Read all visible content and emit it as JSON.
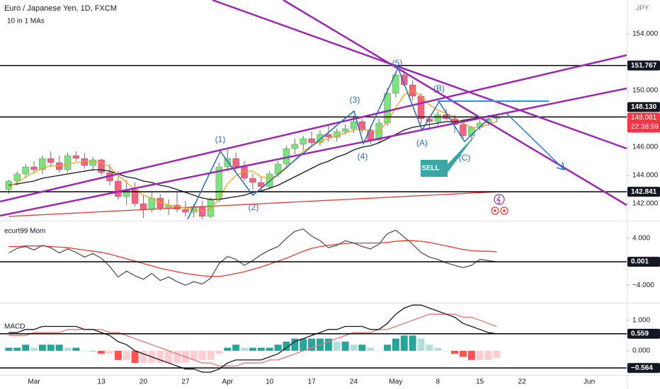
{
  "chart_data": [
    {
      "type": "candlestick",
      "title": "Euro / Japanese Yen, 1D, FXCM",
      "subtitle": "10 in 1 MAs",
      "currency": "JPY",
      "categories": [
        null,
        null,
        null,
        "Mar",
        null,
        null,
        null,
        null,
        null,
        null,
        null,
        "13",
        null,
        null,
        null,
        null,
        "20",
        null,
        null,
        null,
        null,
        "27",
        null,
        null,
        null,
        null,
        "Apr",
        null,
        null,
        null,
        null,
        "10",
        null,
        null,
        null,
        null,
        "17",
        null,
        null,
        null,
        null,
        "24",
        null,
        null,
        null,
        null,
        "May",
        null,
        null,
        null,
        null,
        "8",
        null,
        null,
        null,
        null,
        "15",
        null,
        null,
        null,
        null,
        "22",
        null,
        null,
        null,
        null,
        null,
        null,
        null,
        "Jun"
      ],
      "open": [
        143.0,
        143.6,
        144.1,
        144.6,
        144.4,
        145.2,
        144.9,
        144.4,
        145.4,
        145.2,
        144.7,
        145.1,
        144.2,
        143.6,
        142.5,
        143.0,
        142.0,
        141.6,
        142.4,
        141.7,
        141.9,
        141.6,
        141.4,
        141.8,
        141.1,
        142.3,
        144.6,
        145.2,
        144.6,
        143.8,
        143.5,
        143.2,
        144.1,
        144.8,
        145.9,
        146.2,
        146.6,
        146.3,
        146.9,
        146.7,
        147.1,
        147.3,
        147.8,
        147.2,
        146.5,
        147.7,
        149.8,
        151.1,
        150.4,
        149.6,
        148.0,
        147.8,
        148.3,
        148.0,
        147.6,
        146.8,
        147.4,
        147.7,
        148.0,
        null,
        null,
        null,
        null,
        null,
        null,
        null,
        null,
        null,
        null,
        null
      ],
      "high": [
        143.7,
        144.3,
        144.8,
        145.0,
        145.4,
        145.7,
        145.4,
        145.6,
        145.7,
        145.6,
        145.3,
        145.2,
        144.8,
        144.3,
        143.7,
        143.5,
        142.6,
        142.8,
        142.7,
        142.3,
        142.8,
        142.2,
        142.0,
        142.2,
        142.4,
        144.9,
        145.8,
        145.6,
        145.0,
        144.1,
        143.9,
        144.3,
        145.0,
        146.1,
        146.6,
        146.8,
        147.1,
        147.2,
        147.6,
        147.3,
        147.6,
        148.2,
        148.0,
        147.5,
        148.0,
        150.2,
        151.3,
        151.6,
        150.7,
        149.8,
        148.2,
        148.5,
        148.7,
        148.3,
        147.8,
        147.5,
        147.9,
        148.3,
        148.3,
        null,
        null,
        null,
        null,
        null,
        null,
        null,
        null,
        null,
        null,
        null
      ],
      "low": [
        142.7,
        143.3,
        143.8,
        144.2,
        144.1,
        144.6,
        144.2,
        144.2,
        145.0,
        144.5,
        144.3,
        144.0,
        143.3,
        142.3,
        141.9,
        141.8,
        141.0,
        141.4,
        141.5,
        141.2,
        141.4,
        141.1,
        141.0,
        140.9,
        141.0,
        142.1,
        144.3,
        144.3,
        143.6,
        143.0,
        142.9,
        143.0,
        143.9,
        144.6,
        145.5,
        145.8,
        146.0,
        146.1,
        146.4,
        146.4,
        146.9,
        147.0,
        147.0,
        146.2,
        146.3,
        147.5,
        149.5,
        150.3,
        149.3,
        147.6,
        147.2,
        147.5,
        147.9,
        147.0,
        146.5,
        146.4,
        147.2,
        147.5,
        147.8,
        null,
        null,
        null,
        null,
        null,
        null,
        null,
        null,
        null,
        null,
        null
      ],
      "close": [
        143.6,
        144.1,
        144.6,
        144.4,
        145.2,
        144.9,
        144.4,
        145.4,
        145.2,
        144.7,
        145.1,
        144.2,
        143.6,
        142.5,
        143.0,
        142.0,
        141.6,
        142.4,
        141.7,
        141.9,
        141.6,
        141.4,
        141.8,
        141.1,
        142.3,
        144.6,
        145.2,
        144.6,
        143.8,
        143.5,
        143.2,
        144.1,
        144.8,
        145.9,
        146.2,
        146.6,
        146.3,
        146.9,
        146.7,
        147.1,
        147.3,
        147.8,
        147.2,
        146.5,
        147.7,
        149.8,
        151.1,
        150.4,
        149.6,
        148.0,
        147.8,
        148.3,
        148.0,
        147.6,
        146.8,
        147.4,
        147.7,
        148.0,
        148.081,
        null,
        null,
        null,
        null,
        null,
        null,
        null,
        null,
        null,
        null,
        null
      ],
      "up_color": "#7ee07e",
      "down_color": "#f0627f",
      "series": [
        {
          "color": "#e53935",
          "values": [
            141.1,
            141.13,
            141.16,
            141.19,
            141.22,
            141.25,
            141.28,
            141.31,
            141.34,
            141.37,
            141.4,
            141.43,
            141.46,
            141.49,
            141.52,
            141.55,
            141.58,
            141.61,
            141.64,
            141.67,
            141.7,
            141.73,
            141.76,
            141.79,
            141.82,
            141.85,
            141.88,
            141.91,
            141.94,
            141.97,
            142.0,
            142.03,
            142.06,
            142.09,
            142.12,
            142.15,
            142.18,
            142.21,
            142.24,
            142.27,
            142.3,
            142.33,
            142.36,
            142.39,
            142.42,
            142.45,
            142.48,
            142.51,
            142.54,
            142.57,
            142.6,
            142.63,
            142.66,
            142.69,
            142.72,
            142.75,
            142.78,
            142.81,
            142.84,
            null,
            null,
            null,
            null,
            null,
            null,
            null,
            null,
            null,
            null,
            null
          ]
        },
        {
          "color": "#131722",
          "values": [
            143.3,
            143.4,
            143.5,
            143.6,
            143.8,
            143.9,
            144.0,
            144.1,
            144.2,
            144.3,
            144.4,
            144.4,
            144.3,
            144.1,
            143.9,
            143.8,
            143.6,
            143.5,
            143.3,
            143.2,
            143.0,
            142.8,
            142.6,
            142.4,
            142.3,
            142.3,
            142.4,
            142.5,
            142.6,
            142.8,
            142.9,
            143.1,
            143.3,
            143.6,
            143.9,
            144.2,
            144.5,
            144.8,
            145.0,
            145.3,
            145.5,
            145.8,
            146.0,
            146.1,
            146.3,
            146.6,
            146.9,
            147.2,
            147.4,
            147.5,
            147.6,
            147.7,
            147.8,
            147.8,
            147.9,
            148.0,
            148.1,
            148.2,
            148.3,
            null,
            null,
            null,
            null,
            null,
            null,
            null,
            null,
            null,
            null,
            null
          ]
        },
        {
          "color": "#f7a21b",
          "values": [
            143.2,
            143.5,
            143.9,
            144.2,
            144.5,
            144.7,
            144.7,
            144.8,
            144.9,
            145.0,
            145.0,
            144.9,
            144.6,
            144.0,
            143.5,
            143.0,
            142.6,
            142.4,
            142.1,
            141.9,
            141.8,
            141.7,
            141.6,
            141.5,
            141.6,
            142.4,
            143.4,
            144.0,
            144.3,
            144.3,
            143.9,
            143.8,
            144.0,
            144.5,
            145.1,
            145.7,
            146.1,
            146.4,
            146.6,
            146.8,
            147.0,
            147.2,
            147.3,
            147.1,
            147.1,
            147.8,
            148.8,
            149.7,
            150.0,
            149.6,
            149.0,
            148.6,
            148.4,
            148.1,
            147.7,
            147.4,
            147.4,
            147.6,
            147.8,
            null,
            null,
            null,
            null,
            null,
            null,
            null,
            null,
            null,
            null,
            null
          ]
        }
      ],
      "ylim": [
        140.8,
        156.4
      ],
      "yticks": [
        {
          "value": 142,
          "label": "142.000"
        },
        {
          "value": 144,
          "label": "144.000"
        },
        {
          "value": 146,
          "label": "146.000"
        },
        {
          "value": 150,
          "label": "150.000"
        },
        {
          "value": 154,
          "label": "154.000"
        }
      ],
      "levels": [
        151.767,
        {
          "value": 148.13,
          "label": "148.130"
        },
        142.841
      ],
      "last_price": 148.081,
      "countdown": "22:38:59",
      "annotations": [
        "(1)",
        "(2)",
        "(3)",
        "(4)",
        "(5)",
        "(A)",
        "(B)",
        "(C)",
        "SELL"
      ]
    },
    {
      "type": "line",
      "title": "ecurt99 Mom",
      "series": [
        {
          "color": "#e53935",
          "values": [
            2.6,
            2.6,
            2.7,
            2.7,
            2.7,
            2.6,
            2.5,
            2.4,
            2.2,
            2.0,
            1.8,
            1.6,
            1.3,
            0.9,
            0.5,
            0.1,
            -0.3,
            -0.7,
            -1.1,
            -1.4,
            -1.7,
            -2.0,
            -2.2,
            -2.4,
            -2.5,
            -2.5,
            -2.3,
            -2.0,
            -1.7,
            -1.3,
            -0.9,
            -0.4,
            0.1,
            0.6,
            1.2,
            1.8,
            2.3,
            2.6,
            2.8,
            3.0,
            3.1,
            3.2,
            3.2,
            3.2,
            3.2,
            3.3,
            3.5,
            3.6,
            3.6,
            3.5,
            3.3,
            3.0,
            2.7,
            2.4,
            2.1,
            1.9,
            1.8,
            1.8,
            1.7,
            null,
            null,
            null,
            null,
            null,
            null,
            null,
            null,
            null,
            null,
            null
          ]
        },
        {
          "color": "#555555",
          "values": [
            1.5,
            2.3,
            2.6,
            2.0,
            2.8,
            2.4,
            1.5,
            2.2,
            1.6,
            0.8,
            1.4,
            0.6,
            -0.8,
            -2.6,
            -1.6,
            -2.4,
            -3.0,
            -2.0,
            -3.2,
            -2.6,
            -3.4,
            -4.0,
            -3.4,
            -3.8,
            -2.8,
            -0.3,
            0.9,
            0.4,
            -0.6,
            0.2,
            1.2,
            2.0,
            2.6,
            4.0,
            5.2,
            5.6,
            4.4,
            3.6,
            2.4,
            2.8,
            3.6,
            3.2,
            2.6,
            2.2,
            3.0,
            4.8,
            5.4,
            4.2,
            3.0,
            1.6,
            0.8,
            0.4,
            -0.2,
            -0.6,
            -1.0,
            -0.6,
            0.4,
            0.2,
            0.001,
            null,
            null,
            null,
            null,
            null,
            null,
            null,
            null,
            null,
            null,
            null
          ]
        }
      ],
      "ylim": [
        -7.0,
        6.9
      ],
      "yticks": [
        {
          "value": 4,
          "label": "4.000"
        },
        {
          "value": -4,
          "label": "−4.000"
        }
      ],
      "levels": [
        0.001
      ]
    },
    {
      "type": "line",
      "title": "MACD",
      "series": [
        {
          "color": "#e57373",
          "values": [
            0.5,
            0.5,
            0.5,
            0.6,
            0.6,
            0.6,
            0.6,
            0.7,
            0.7,
            0.7,
            0.7,
            0.7,
            0.6,
            0.6,
            0.5,
            0.4,
            0.3,
            0.2,
            0.1,
            0.0,
            -0.1,
            -0.2,
            -0.3,
            -0.4,
            -0.4,
            -0.5,
            -0.5,
            -0.5,
            -0.4,
            -0.4,
            -0.4,
            -0.3,
            -0.3,
            -0.2,
            -0.1,
            0.0,
            0.1,
            0.2,
            0.3,
            0.4,
            0.5,
            0.6,
            0.6,
            0.6,
            0.7,
            0.7,
            0.8,
            0.9,
            1.0,
            1.1,
            1.2,
            1.2,
            1.2,
            1.2,
            1.1,
            1.1,
            1.0,
            0.9,
            0.8,
            null,
            null,
            null,
            null,
            null,
            null,
            null,
            null,
            null,
            null,
            null
          ]
        },
        {
          "color": "#131722",
          "values": [
            0.6,
            0.6,
            0.7,
            0.7,
            0.8,
            0.8,
            0.8,
            0.8,
            0.8,
            0.7,
            0.7,
            0.6,
            0.5,
            0.3,
            0.2,
            0.0,
            -0.1,
            -0.2,
            -0.3,
            -0.4,
            -0.5,
            -0.6,
            -0.6,
            -0.7,
            -0.7,
            -0.6,
            -0.4,
            -0.3,
            -0.3,
            -0.3,
            -0.3,
            -0.2,
            -0.1,
            0.1,
            0.3,
            0.4,
            0.5,
            0.6,
            0.7,
            0.7,
            0.8,
            0.8,
            0.8,
            0.7,
            0.7,
            0.9,
            1.2,
            1.4,
            1.5,
            1.5,
            1.4,
            1.3,
            1.2,
            1.1,
            0.9,
            0.8,
            0.7,
            0.6,
            0.559,
            null,
            null,
            null,
            null,
            null,
            null,
            null,
            null,
            null,
            null,
            null
          ]
        }
      ],
      "histogram": {
        "colors": [
          "#26a69a",
          "#b2dfdb",
          "#ff5252",
          "#ffcdd2"
        ],
        "values": [
          0.1,
          0.1,
          0.2,
          0.1,
          0.2,
          0.2,
          0.2,
          0.1,
          0.1,
          0,
          0,
          -0.1,
          -0.1,
          -0.3,
          -0.3,
          -0.4,
          -0.4,
          -0.4,
          -0.4,
          -0.4,
          -0.4,
          -0.4,
          -0.3,
          -0.3,
          -0.3,
          -0.1,
          0.1,
          0.2,
          0.1,
          0.1,
          0.1,
          0.1,
          0.2,
          0.3,
          0.4,
          0.4,
          0.4,
          0.4,
          0.4,
          0.3,
          0.3,
          0.2,
          0.2,
          0.1,
          0,
          0.2,
          0.4,
          0.5,
          0.5,
          0.4,
          0.2,
          0.1,
          0,
          -0.1,
          -0.2,
          -0.3,
          -0.3,
          -0.3,
          -0.24,
          null,
          null,
          null,
          null,
          null,
          null,
          null,
          null,
          null,
          null,
          null
        ]
      },
      "ylim": [
        -0.79,
        1.53
      ],
      "yticks": [
        {
          "value": 1,
          "label": "1.000"
        },
        {
          "value": 0,
          "label": "0.000"
        }
      ],
      "levels": [
        0.559,
        {
          "value": -0.564,
          "label": "−0.564"
        }
      ]
    }
  ]
}
